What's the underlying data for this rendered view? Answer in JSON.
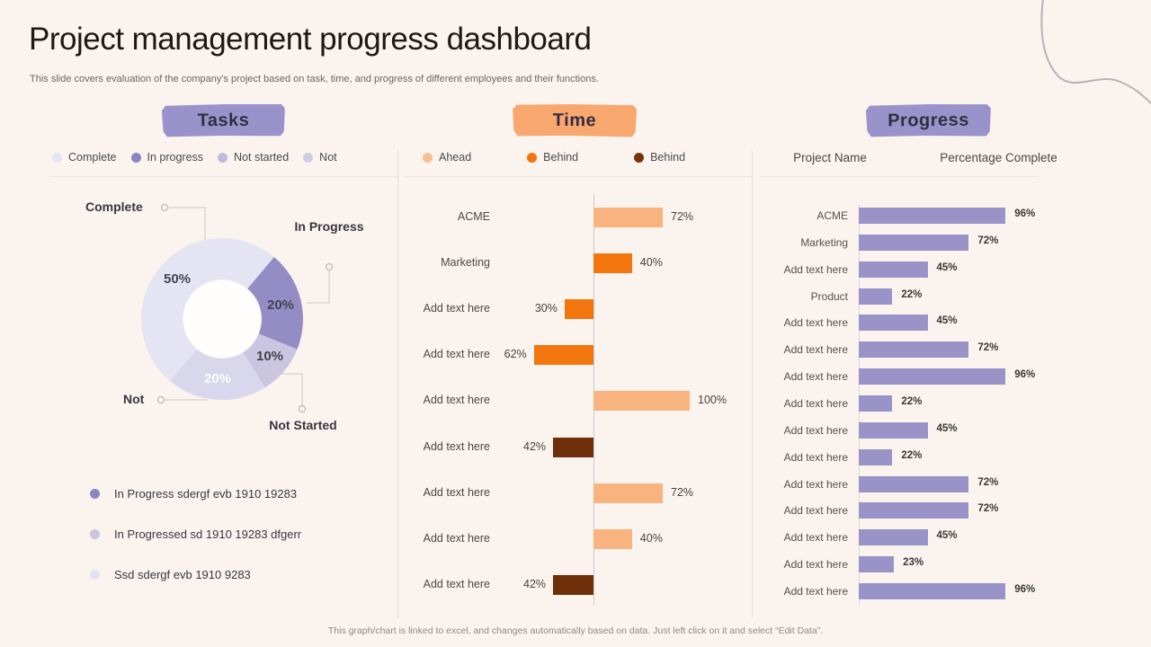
{
  "slide": {
    "title": "Project management progress dashboard",
    "subtitle": "This slide covers evaluation of the company's project based on task, time, and progress of different employees and their functions.",
    "footer": "This graph/chart is linked to excel, and changes automatically based on data. Just left click on it and select “Edit Data”."
  },
  "colors": {
    "background": "#FAF3EE",
    "band_purple": "#9A93CB",
    "band_peach": "#F8A76F",
    "donut_complete": "#E5E4F3",
    "donut_in_progress": "#948DC5",
    "donut_not_started": "#CAC6E1",
    "donut_not": "#D9D7EB",
    "time_ahead": "#F9B37F",
    "time_behind": "#F3750E",
    "time_behind_dark": "#6F2F0B",
    "progress_bar": "#9A93C8"
  },
  "tasks": {
    "header": "Tasks",
    "legend": [
      {
        "label": "Complete",
        "color": "#E5E4F3"
      },
      {
        "label": "In progress",
        "color": "#8C85BF"
      },
      {
        "label": "Not started",
        "color": "#BFBBDA"
      },
      {
        "label": "Not",
        "color": "#CFCCE5"
      }
    ],
    "callouts": {
      "complete": "Complete",
      "in_progress": "In Progress",
      "not": "Not",
      "not_started": "Not Started"
    },
    "bottom_legend": [
      {
        "label": "In Progress sdergf evb 1910 19283",
        "color": "#8C85BF"
      },
      {
        "label": "In Progressed sd 1910 19283 dfgerr",
        "color": "#C8C5DF"
      },
      {
        "label": "Ssd sdergf evb 1910 9283",
        "color": "#E2E1EF"
      }
    ]
  },
  "time": {
    "header": "Time",
    "legend": [
      {
        "label": "Ahead",
        "color": "#F7BE92"
      },
      {
        "label": "Behind",
        "color": "#F3730C"
      },
      {
        "label": "Behind",
        "color": "#7A3209"
      }
    ]
  },
  "progress": {
    "header": "Progress",
    "columns": [
      "Project Name",
      "Percentage Complete"
    ]
  },
  "chart_data": [
    {
      "type": "pie",
      "subtype": "donut",
      "panel": "tasks",
      "title": "Tasks",
      "start_angle_deg": 220,
      "slices": [
        {
          "label": "Complete",
          "value": 50,
          "color": "#E5E4F3"
        },
        {
          "label": "In Progress",
          "value": 20,
          "color": "#948DC5"
        },
        {
          "label": "Not Started",
          "value": 10,
          "color": "#CAC6E1"
        },
        {
          "label": "Not",
          "value": 20,
          "color": "#D9D7EB"
        }
      ],
      "value_suffix": "%"
    },
    {
      "type": "bar",
      "subtype": "horizontal-diverging",
      "panel": "time",
      "title": "Time",
      "xlim": [
        -100,
        100
      ],
      "rows": [
        {
          "label": "ACME",
          "value": 72,
          "direction": "right",
          "series": "Ahead",
          "color": "#F9B37F"
        },
        {
          "label": "Marketing",
          "value": 40,
          "direction": "right",
          "series": "Behind",
          "color": "#F3750E"
        },
        {
          "label": "Add text here",
          "value": 30,
          "direction": "left",
          "series": "Behind",
          "color": "#F3750E"
        },
        {
          "label": "Add text here",
          "value": 62,
          "direction": "left",
          "series": "Behind",
          "color": "#F3750E"
        },
        {
          "label": "Add text here",
          "value": 100,
          "direction": "right",
          "series": "Ahead",
          "color": "#F9B37F"
        },
        {
          "label": "Add text here",
          "value": 42,
          "direction": "left",
          "series": "Behind dark",
          "color": "#6F2F0B"
        },
        {
          "label": "Add text here",
          "value": 72,
          "direction": "right",
          "series": "Ahead",
          "color": "#F9B37F"
        },
        {
          "label": "Add text here",
          "value": 40,
          "direction": "right",
          "series": "Ahead",
          "color": "#F9B37F"
        },
        {
          "label": "Add text here",
          "value": 42,
          "direction": "left",
          "series": "Behind dark",
          "color": "#6F2F0B"
        }
      ],
      "value_suffix": "%"
    },
    {
      "type": "bar",
      "subtype": "horizontal",
      "panel": "progress",
      "title": "Progress",
      "xlim": [
        0,
        100
      ],
      "bar_color": "#9A93C8",
      "rows": [
        {
          "label": "ACME",
          "value": 96
        },
        {
          "label": "Marketing",
          "value": 72
        },
        {
          "label": "Add text here",
          "value": 45
        },
        {
          "label": "Product",
          "value": 22
        },
        {
          "label": "Add text here",
          "value": 45
        },
        {
          "label": "Add text here",
          "value": 72
        },
        {
          "label": "Add text here",
          "value": 96
        },
        {
          "label": "Add text here",
          "value": 22
        },
        {
          "label": "Add text here",
          "value": 45
        },
        {
          "label": "Add text here",
          "value": 22
        },
        {
          "label": "Add text here",
          "value": 72
        },
        {
          "label": "Add text here",
          "value": 72
        },
        {
          "label": "Add text here",
          "value": 45
        },
        {
          "label": "Add text here",
          "value": 23
        },
        {
          "label": "Add text here",
          "value": 96
        }
      ],
      "value_suffix": "%"
    }
  ]
}
